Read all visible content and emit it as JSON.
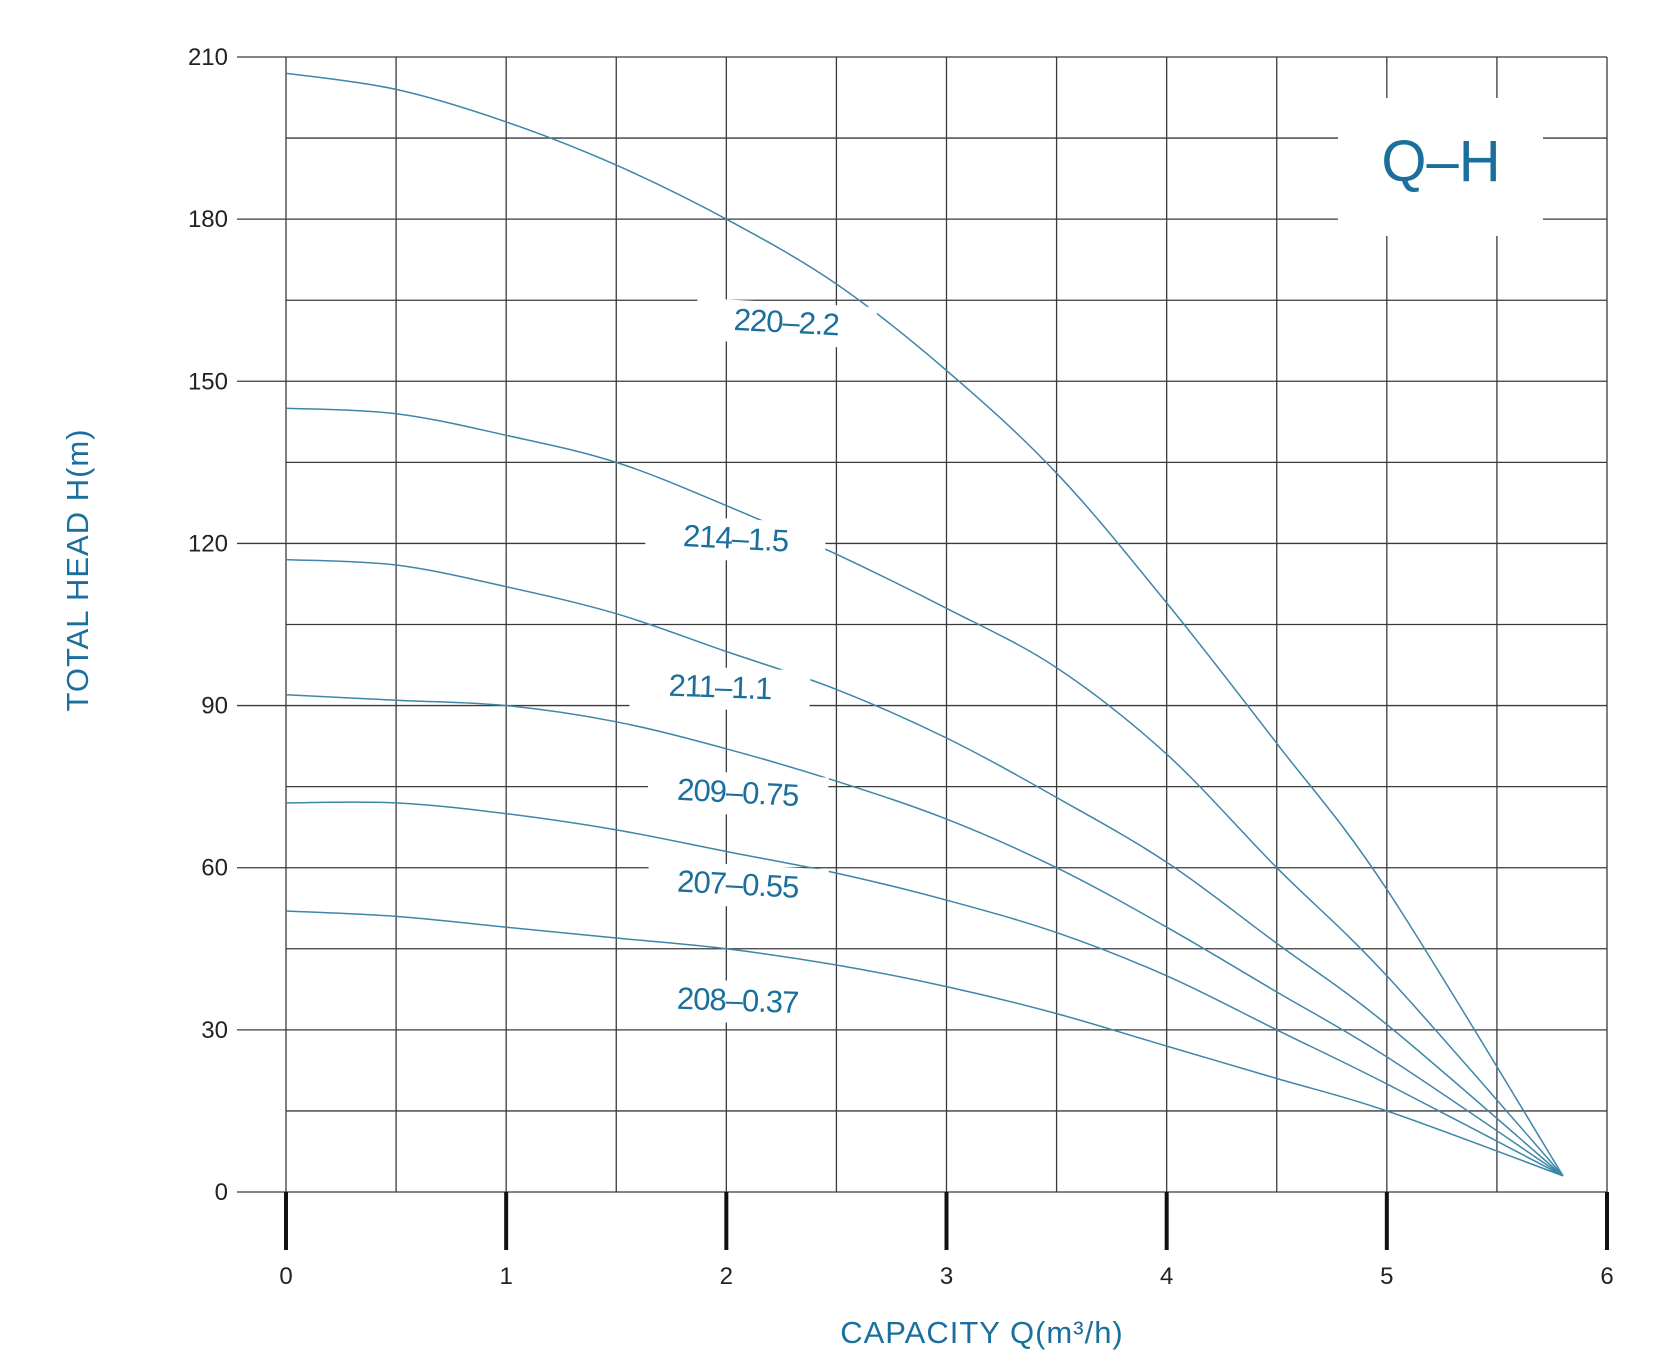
{
  "chart_data": {
    "type": "line",
    "title": "Q–H",
    "xlabel": "CAPACITY Q(m³/h)",
    "ylabel": "TOTAL HEAD H(m)",
    "xlim": [
      0,
      6
    ],
    "ylim": [
      0,
      210
    ],
    "x_ticks": [
      "0",
      "1",
      "2",
      "3",
      "4",
      "5",
      "6"
    ],
    "y_ticks": [
      "0",
      "30",
      "60",
      "90",
      "120",
      "150",
      "180",
      "210"
    ],
    "grid": true,
    "series": [
      {
        "name": "220–2.2",
        "x": [
          0,
          0.5,
          1,
          1.5,
          2,
          2.5,
          3,
          3.5,
          4,
          4.5,
          5,
          5.8
        ],
        "values": [
          207,
          204,
          198,
          190,
          180,
          168,
          152,
          133,
          109,
          83,
          56,
          3
        ]
      },
      {
        "name": "214–1.5",
        "x": [
          0,
          0.5,
          1,
          1.5,
          2,
          2.5,
          3,
          3.5,
          4,
          4.5,
          5,
          5.8
        ],
        "values": [
          145,
          144,
          140,
          135,
          127,
          118,
          108,
          97,
          81,
          60,
          40,
          3
        ]
      },
      {
        "name": "211–1.1",
        "x": [
          0,
          0.5,
          1,
          1.5,
          2,
          2.5,
          3,
          3.5,
          4,
          4.5,
          5,
          5.8
        ],
        "values": [
          117,
          116,
          112,
          107,
          100,
          93,
          84,
          73,
          61,
          46,
          31,
          3
        ]
      },
      {
        "name": "209–0.75",
        "x": [
          0,
          0.5,
          1,
          1.5,
          2,
          2.5,
          3,
          3.5,
          4,
          4.5,
          5,
          5.8
        ],
        "values": [
          92,
          91,
          90,
          87,
          82,
          76,
          69,
          60,
          49,
          37,
          25,
          3
        ]
      },
      {
        "name": "207–0.55",
        "x": [
          0,
          0.5,
          1,
          1.5,
          2,
          2.5,
          3,
          3.5,
          4,
          4.5,
          5,
          5.8
        ],
        "values": [
          72,
          72,
          70,
          67,
          63,
          59,
          54,
          48,
          40,
          30,
          20,
          3
        ]
      },
      {
        "name": "208–0.37",
        "x": [
          0,
          0.5,
          1,
          1.5,
          2,
          2.5,
          3,
          3.5,
          4,
          4.5,
          5,
          5.8
        ],
        "values": [
          52,
          51,
          49,
          47,
          45,
          42,
          38,
          33,
          27,
          21,
          15,
          3
        ]
      }
    ]
  }
}
